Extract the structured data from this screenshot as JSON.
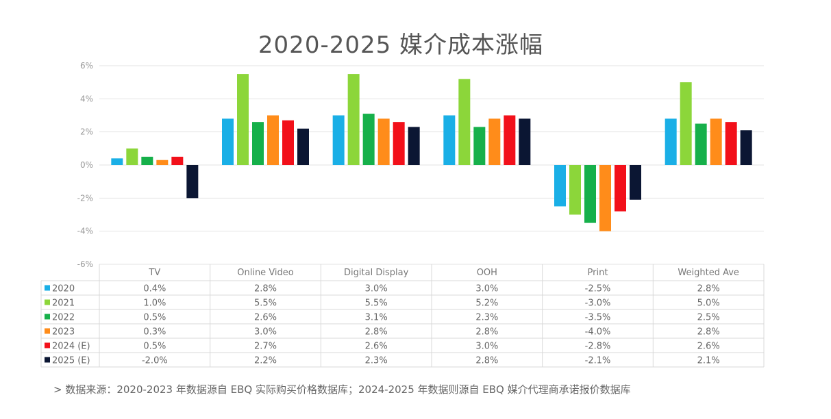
{
  "title": "2020-2025 媒介成本涨幅",
  "source_note": "> 数据来源：2020-2023 年数据源自 EBQ 实际购买价格数据库；2024-2025 年数据则源自 EBQ 媒介代理商承诺报价数据库",
  "chart_data": {
    "type": "bar",
    "title": "2020-2025 媒介成本涨幅",
    "xlabel": "",
    "ylabel": "",
    "ylim": [
      -6,
      6
    ],
    "yticks": [
      6,
      4,
      2,
      0,
      -2,
      -4,
      -6
    ],
    "ytick_labels": [
      "6%",
      "4%",
      "2%",
      "0%",
      "-2%",
      "-4%",
      "-6%"
    ],
    "grid": true,
    "legend": "data-table-below",
    "categories": [
      "TV",
      "Online Video",
      "Digital Display",
      "OOH",
      "Print",
      "Weighted Ave"
    ],
    "series": [
      {
        "name": "2020",
        "color": "#1AAFE6",
        "values": [
          0.4,
          2.8,
          3.0,
          3.0,
          -2.5,
          2.8
        ],
        "labels": [
          "0.4%",
          "2.8%",
          "3.0%",
          "3.0%",
          "-2.5%",
          "2.8%"
        ]
      },
      {
        "name": "2021",
        "color": "#8CD63A",
        "values": [
          1.0,
          5.5,
          5.5,
          5.2,
          -3.0,
          5.0
        ],
        "labels": [
          "1.0%",
          "5.5%",
          "5.5%",
          "5.2%",
          "-3.0%",
          "5.0%"
        ]
      },
      {
        "name": "2022",
        "color": "#16B04A",
        "values": [
          0.5,
          2.6,
          3.1,
          2.3,
          -3.5,
          2.5
        ],
        "labels": [
          "0.5%",
          "2.6%",
          "3.1%",
          "2.3%",
          "-3.5%",
          "2.5%"
        ]
      },
      {
        "name": "2023",
        "color": "#FF8C1A",
        "values": [
          0.3,
          3.0,
          2.8,
          2.8,
          -4.0,
          2.8
        ],
        "labels": [
          "0.3%",
          "3.0%",
          "2.8%",
          "2.8%",
          "-4.0%",
          "2.8%"
        ]
      },
      {
        "name": "2024 (E)",
        "color": "#F2101A",
        "values": [
          0.5,
          2.7,
          2.6,
          3.0,
          -2.8,
          2.6
        ],
        "labels": [
          "0.5%",
          "2.7%",
          "2.6%",
          "3.0%",
          "-2.8%",
          "2.6%"
        ]
      },
      {
        "name": "2025 (E)",
        "color": "#0B1633",
        "values": [
          -2.0,
          2.2,
          2.3,
          2.8,
          -2.1,
          2.1
        ],
        "labels": [
          "-2.0%",
          "2.2%",
          "2.3%",
          "2.8%",
          "-2.1%",
          "2.1%"
        ]
      }
    ]
  }
}
